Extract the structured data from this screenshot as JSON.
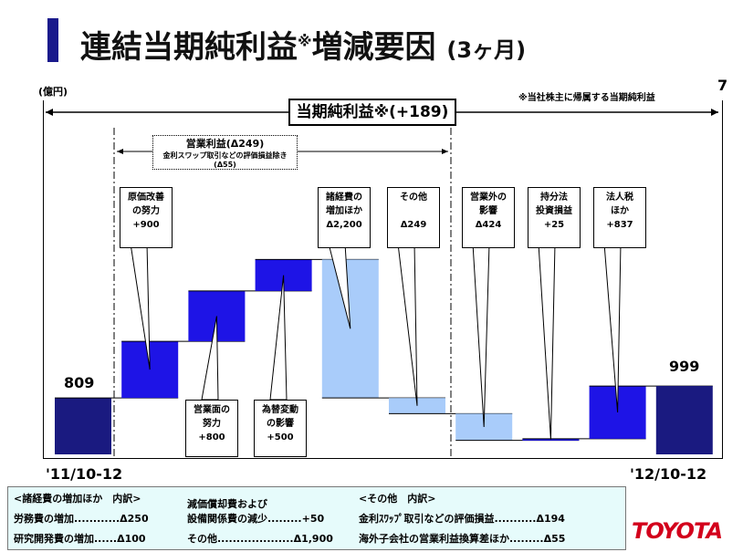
{
  "header": {
    "title": "連結当期純利益",
    "title_mark": "※",
    "title_suffix": "増減要因",
    "period": "(3ヶ月)",
    "page": "7"
  },
  "unit": "(億円)",
  "note": "※当社株主に帰属する当期純利益",
  "net_label": "当期純利益※(+189)",
  "op_label": "営業利益(Δ249)",
  "op_sub": "金利スワップ取引などの評価損益除き(Δ55)",
  "chart_data": {
    "type": "waterfall",
    "categories": [
      "'11/10-12",
      "原価改善の努力",
      "営業面の努力",
      "為替変動の影響",
      "諸経費の増加ほか",
      "その他",
      "営業外の影響",
      "持分法投資損益",
      "法人税ほか",
      "'12/10-12"
    ],
    "values": [
      809,
      900,
      800,
      500,
      -2200,
      -249,
      -424,
      25,
      837,
      999
    ],
    "kinds": [
      "total",
      "up",
      "up",
      "up",
      "down",
      "down",
      "down",
      "up",
      "up",
      "total"
    ],
    "start_label": "809",
    "end_label": "999",
    "x_start": "'11/10-12",
    "x_end": "'12/10-12",
    "colors": {
      "total": "#1a1a80",
      "up": "#1e14e6",
      "down": "#a9ccfa"
    }
  },
  "callouts": [
    {
      "l1": "原価改善",
      "l2": "の努力",
      "v": "+900"
    },
    {
      "l1": "営業面の",
      "l2": "努力",
      "v": "+800"
    },
    {
      "l1": "為替変動",
      "l2": "の影響",
      "v": "+500"
    },
    {
      "l1": "諸経費の",
      "l2": "増加ほか",
      "v": "Δ2,200"
    },
    {
      "l1": "その他",
      "l2": "",
      "v": "Δ249"
    },
    {
      "l1": "営業外の",
      "l2": "影響",
      "v": "Δ424"
    },
    {
      "l1": "持分法",
      "l2": "投資損益",
      "v": "+25"
    },
    {
      "l1": "法人税",
      "l2": "ほか",
      "v": "+837"
    }
  ],
  "legend": {
    "h1": "<諸経費の増加ほか　内訳>",
    "a1": "労務費の増加............Δ250",
    "a2": "研究開発費の増加......Δ100",
    "h2": "減価償却費および",
    "b1": "設備関係費の減少.........+50",
    "b2": "その他....................Δ1,900",
    "h3": "<その他　内訳>",
    "c1": "金利ｽﾜｯﾌﾟ取引などの評価損益...........Δ194",
    "c2": "海外子会社の営業利益換算差ほか.........Δ55"
  },
  "logo": "TOYOTA"
}
